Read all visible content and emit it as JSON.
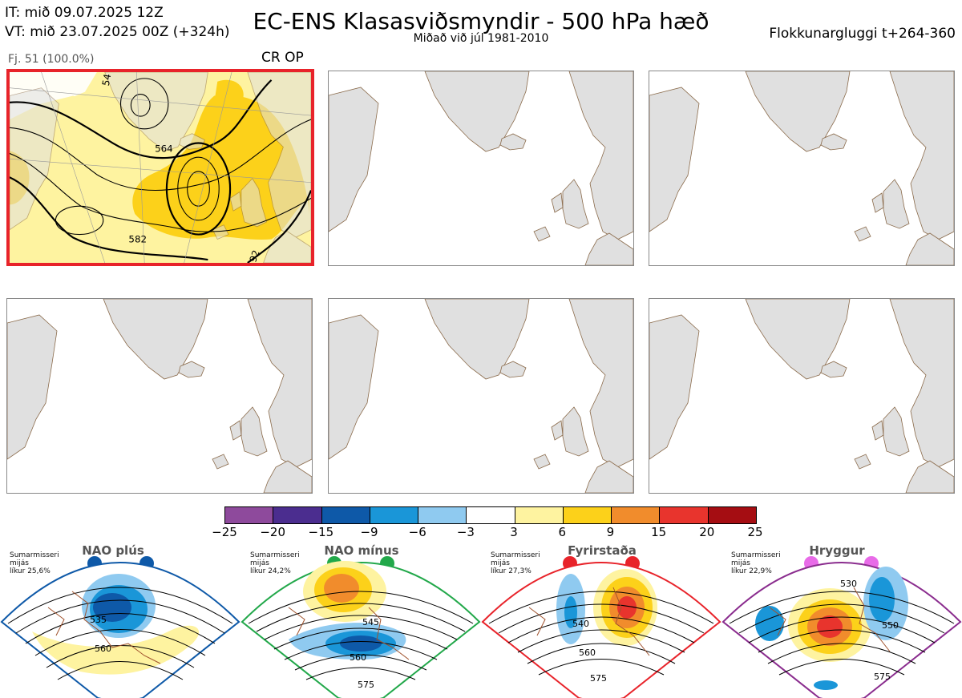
{
  "header": {
    "it": "IT: mið 09.07.2025 12Z",
    "vt": "VT: mið 23.07.2025 00Z  (+324h)",
    "title": "EC-ENS Klasasviðsmyndir - 500 hPa hæð",
    "subtitle": "Miðað við júl 1981-2010",
    "window": "Flokkunargluggi t+264-360"
  },
  "selected_panel": {
    "members_label": "Fj. 51 (100.0%)",
    "regime_code": "CR OP",
    "contour_labels": [
      "564",
      "582",
      "54",
      "92"
    ]
  },
  "colorbar": {
    "ticks": [
      "−25",
      "−20",
      "−15",
      "−9",
      "−6",
      "−3",
      "3",
      "6",
      "9",
      "15",
      "20",
      "25"
    ],
    "colors": [
      "#8e4a9c",
      "#4b2d8f",
      "#0e59a8",
      "#1a96d8",
      "#8fcaf0",
      "#ffffff",
      "#fef3a0",
      "#fcd11a",
      "#f18c2c",
      "#e8342d",
      "#a50d12"
    ]
  },
  "regimes": [
    {
      "name": "NAO plús",
      "season": "Sumarmisseri",
      "ref": "mijás",
      "prob": "líkur 25,6%",
      "color": "#0e59a8",
      "labels": [
        "535",
        "560"
      ]
    },
    {
      "name": "NAO mínus",
      "season": "Sumarmisseri",
      "ref": "mijás",
      "prob": "líkur 24,2%",
      "color": "#22a84a",
      "labels": [
        "545",
        "560",
        "575"
      ]
    },
    {
      "name": "Fyrirstaða",
      "season": "Sumarmisseri",
      "ref": "mijás",
      "prob": "líkur 27,3%",
      "color": "#e8232a",
      "labels": [
        "540",
        "560",
        "575"
      ]
    },
    {
      "name": "Hryggur",
      "season": "Sumarmisseri",
      "ref": "mijás",
      "prob": "líkur 22,9%",
      "color": "#8a2c8e",
      "labels": [
        "530",
        "550",
        "575"
      ]
    }
  ]
}
